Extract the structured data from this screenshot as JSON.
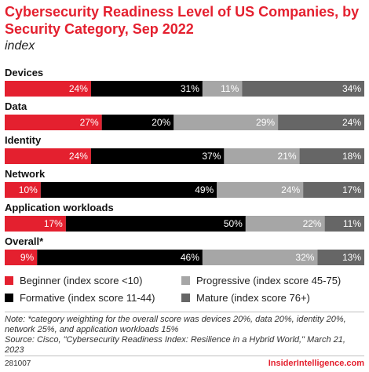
{
  "header": {
    "title": "Cybersecurity Readiness Level of US Companies, by Security Category, Sep 2022",
    "subtitle": "index"
  },
  "chart_data": {
    "type": "bar",
    "stacked": true,
    "orientation": "horizontal",
    "unit": "%",
    "categories": [
      "Devices",
      "Data",
      "Identity",
      "Network",
      "Application workloads",
      "Overall*"
    ],
    "series": [
      {
        "name": "Beginner (index score <10)",
        "color": "#e4202f",
        "values": [
          24,
          27,
          24,
          10,
          17,
          9
        ]
      },
      {
        "name": "Formative (index score 11-44)",
        "color": "#000000",
        "values": [
          31,
          20,
          37,
          49,
          50,
          46
        ]
      },
      {
        "name": "Progressive (index score 45-75)",
        "color": "#a6a6a6",
        "values": [
          11,
          29,
          21,
          24,
          22,
          32
        ]
      },
      {
        "name": "Mature (index score 76+)",
        "color": "#666666",
        "values": [
          34,
          24,
          18,
          17,
          11,
          13
        ]
      }
    ],
    "legend_position": "bottom"
  },
  "note": "Note: *category weighting for the overall score was devices 20%, data 20%, identity 20%, network 25%, and application workloads 15%",
  "source": "Source: Cisco, \"Cybersecurity Readiness Index: Resilience in a Hybrid World,\" March 21, 2023",
  "footer": {
    "chart_id": "281007",
    "brand": "InsiderIntelligence.com"
  }
}
